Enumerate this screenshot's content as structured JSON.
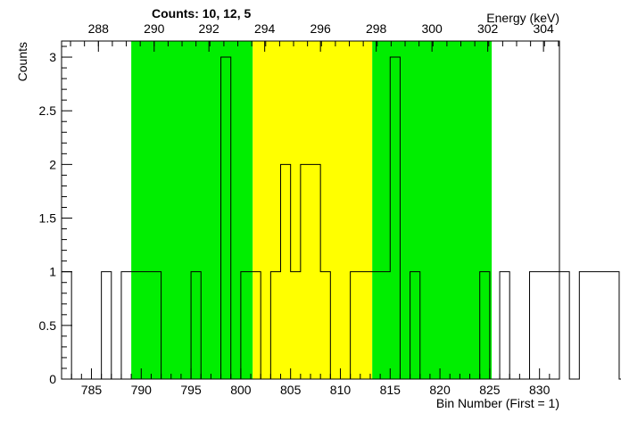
{
  "chart_data": {
    "type": "histogram",
    "title": "Counts:   10,   12,   5",
    "xlabel": "Bin Number (First = 1)",
    "ylabel": "Counts",
    "x2label": "Energy (keV)",
    "xlim": [
      782,
      832
    ],
    "ylim": [
      0,
      3.15
    ],
    "grid": false,
    "bin_width": 1,
    "bins_x_start": 782,
    "values": [
      1,
      0,
      0,
      0,
      1,
      0,
      1,
      1,
      1,
      1,
      0,
      0,
      0,
      1,
      0,
      0,
      3,
      0,
      1,
      1,
      0,
      1,
      2,
      1,
      2,
      2,
      1,
      0,
      0,
      1,
      1,
      1,
      1,
      3,
      0,
      1,
      0,
      0,
      0,
      0,
      0,
      0,
      1,
      0,
      1,
      0,
      0,
      1,
      1,
      1,
      1,
      0,
      1,
      1,
      1,
      1,
      0,
      0,
      1,
      1,
      0
    ],
    "bands": [
      {
        "x0": 789,
        "x1": 801.2,
        "color": "#00ee00"
      },
      {
        "x0": 801.2,
        "x1": 813.2,
        "color": "#ffff00"
      },
      {
        "x0": 813.2,
        "x1": 825.2,
        "color": "#00ee00"
      }
    ],
    "x_ticks": [
      785,
      790,
      795,
      800,
      805,
      810,
      815,
      820,
      825,
      830
    ],
    "y_ticks": [
      0,
      0.5,
      1,
      1.5,
      2,
      2.5,
      3
    ],
    "top_axis": {
      "label": "Energy (keV)",
      "ticks": [
        {
          "bin": 785.7,
          "label": "288"
        },
        {
          "bin": 791.3,
          "label": "290"
        },
        {
          "bin": 796.8,
          "label": "292"
        },
        {
          "bin": 802.4,
          "label": "294"
        },
        {
          "bin": 808.0,
          "label": "296"
        },
        {
          "bin": 813.6,
          "label": "298"
        },
        {
          "bin": 819.2,
          "label": "300"
        },
        {
          "bin": 824.8,
          "label": "302"
        },
        {
          "bin": 830.4,
          "label": "304"
        }
      ]
    },
    "colors": {
      "line": "#000000",
      "green": "#00ee00",
      "yellow": "#ffff00"
    }
  }
}
